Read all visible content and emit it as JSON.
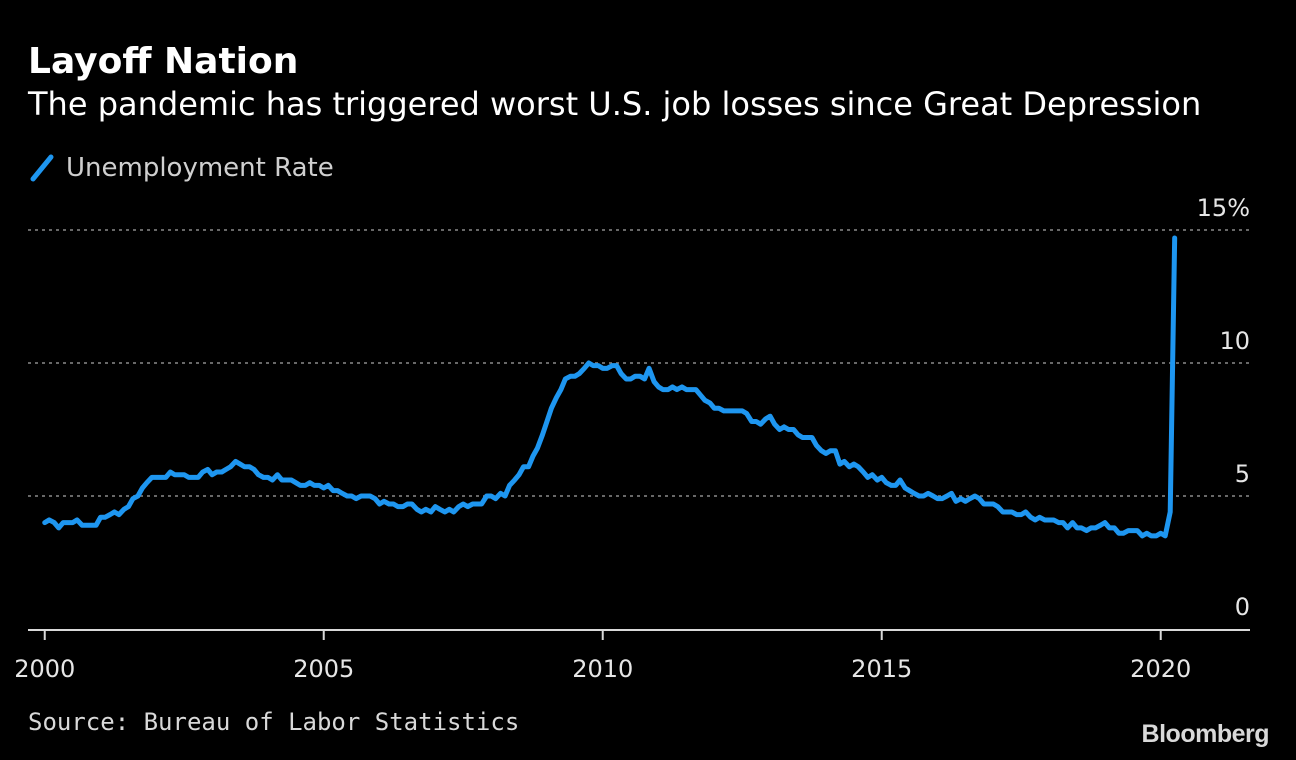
{
  "title": "Layoff Nation",
  "subtitle": "The pandemic has triggered worst U.S. job losses since Great Depression",
  "source": "Source: Bureau of Labor Statistics",
  "brand": "Bloomberg",
  "colors": {
    "background": "#000000",
    "series": "#1e96f0",
    "text": "#ffffff",
    "muted_text": "#cfcfcf",
    "gridline": "#8a8a8a",
    "axis": "#d9d9d9"
  },
  "chart_data": {
    "type": "line",
    "title": "Layoff Nation",
    "subtitle": "The pandemic has triggered worst U.S. job losses since Great Depression",
    "xlabel": "",
    "ylabel": "",
    "xlim": [
      1999.7,
      2021.6
    ],
    "ylim": [
      0,
      15
    ],
    "grid": true,
    "legend": "top-left",
    "x_ticks": [
      {
        "value": 2000,
        "label": "2000"
      },
      {
        "value": 2005,
        "label": "2005"
      },
      {
        "value": 2010,
        "label": "2010"
      },
      {
        "value": 2015,
        "label": "2015"
      },
      {
        "value": 2020,
        "label": "2020"
      }
    ],
    "y_ticks": [
      {
        "value": 0,
        "label": "0"
      },
      {
        "value": 5,
        "label": "5"
      },
      {
        "value": 10,
        "label": "10"
      },
      {
        "value": 15,
        "label": "15%"
      }
    ],
    "series": [
      {
        "name": "Unemployment Rate",
        "color": "#1e96f0",
        "x": [
          2000.0,
          2000.08,
          2000.17,
          2000.25,
          2000.33,
          2000.42,
          2000.5,
          2000.58,
          2000.67,
          2000.75,
          2000.83,
          2000.92,
          2001.0,
          2001.08,
          2001.17,
          2001.25,
          2001.33,
          2001.42,
          2001.5,
          2001.58,
          2001.67,
          2001.75,
          2001.83,
          2001.92,
          2002.0,
          2002.08,
          2002.17,
          2002.25,
          2002.33,
          2002.42,
          2002.5,
          2002.58,
          2002.67,
          2002.75,
          2002.83,
          2002.92,
          2003.0,
          2003.08,
          2003.17,
          2003.25,
          2003.33,
          2003.42,
          2003.5,
          2003.58,
          2003.67,
          2003.75,
          2003.83,
          2003.92,
          2004.0,
          2004.08,
          2004.17,
          2004.25,
          2004.33,
          2004.42,
          2004.5,
          2004.58,
          2004.67,
          2004.75,
          2004.83,
          2004.92,
          2005.0,
          2005.08,
          2005.17,
          2005.25,
          2005.33,
          2005.42,
          2005.5,
          2005.58,
          2005.67,
          2005.75,
          2005.83,
          2005.92,
          2006.0,
          2006.08,
          2006.17,
          2006.25,
          2006.33,
          2006.42,
          2006.5,
          2006.58,
          2006.67,
          2006.75,
          2006.83,
          2006.92,
          2007.0,
          2007.08,
          2007.17,
          2007.25,
          2007.33,
          2007.42,
          2007.5,
          2007.58,
          2007.67,
          2007.75,
          2007.83,
          2007.92,
          2008.0,
          2008.08,
          2008.17,
          2008.25,
          2008.33,
          2008.42,
          2008.5,
          2008.58,
          2008.67,
          2008.75,
          2008.83,
          2008.92,
          2009.0,
          2009.08,
          2009.17,
          2009.25,
          2009.33,
          2009.42,
          2009.5,
          2009.58,
          2009.67,
          2009.75,
          2009.83,
          2009.92,
          2010.0,
          2010.08,
          2010.17,
          2010.25,
          2010.33,
          2010.42,
          2010.5,
          2010.58,
          2010.67,
          2010.75,
          2010.83,
          2010.92,
          2011.0,
          2011.08,
          2011.17,
          2011.25,
          2011.33,
          2011.42,
          2011.5,
          2011.58,
          2011.67,
          2011.75,
          2011.83,
          2011.92,
          2012.0,
          2012.08,
          2012.17,
          2012.25,
          2012.33,
          2012.42,
          2012.5,
          2012.58,
          2012.67,
          2012.75,
          2012.83,
          2012.92,
          2013.0,
          2013.08,
          2013.17,
          2013.25,
          2013.33,
          2013.42,
          2013.5,
          2013.58,
          2013.67,
          2013.75,
          2013.83,
          2013.92,
          2014.0,
          2014.08,
          2014.17,
          2014.25,
          2014.33,
          2014.42,
          2014.5,
          2014.58,
          2014.67,
          2014.75,
          2014.83,
          2014.92,
          2015.0,
          2015.08,
          2015.17,
          2015.25,
          2015.33,
          2015.42,
          2015.5,
          2015.58,
          2015.67,
          2015.75,
          2015.83,
          2015.92,
          2016.0,
          2016.08,
          2016.17,
          2016.25,
          2016.33,
          2016.42,
          2016.5,
          2016.58,
          2016.67,
          2016.75,
          2016.83,
          2016.92,
          2017.0,
          2017.08,
          2017.17,
          2017.25,
          2017.33,
          2017.42,
          2017.5,
          2017.58,
          2017.67,
          2017.75,
          2017.83,
          2017.92,
          2018.0,
          2018.08,
          2018.17,
          2018.25,
          2018.33,
          2018.42,
          2018.5,
          2018.58,
          2018.67,
          2018.75,
          2018.83,
          2018.92,
          2019.0,
          2019.08,
          2019.17,
          2019.25,
          2019.33,
          2019.42,
          2019.5,
          2019.58,
          2019.67,
          2019.75,
          2019.83,
          2019.92,
          2020.0,
          2020.08,
          2020.17,
          2020.25
        ],
        "y": [
          4.0,
          4.1,
          4.0,
          3.8,
          4.0,
          4.0,
          4.0,
          4.1,
          3.9,
          3.9,
          3.9,
          3.9,
          4.2,
          4.2,
          4.3,
          4.4,
          4.3,
          4.5,
          4.6,
          4.9,
          5.0,
          5.3,
          5.5,
          5.7,
          5.7,
          5.7,
          5.7,
          5.9,
          5.8,
          5.8,
          5.8,
          5.7,
          5.7,
          5.7,
          5.9,
          6.0,
          5.8,
          5.9,
          5.9,
          6.0,
          6.1,
          6.3,
          6.2,
          6.1,
          6.1,
          6.0,
          5.8,
          5.7,
          5.7,
          5.6,
          5.8,
          5.6,
          5.6,
          5.6,
          5.5,
          5.4,
          5.4,
          5.5,
          5.4,
          5.4,
          5.3,
          5.4,
          5.2,
          5.2,
          5.1,
          5.0,
          5.0,
          4.9,
          5.0,
          5.0,
          5.0,
          4.9,
          4.7,
          4.8,
          4.7,
          4.7,
          4.6,
          4.6,
          4.7,
          4.7,
          4.5,
          4.4,
          4.5,
          4.4,
          4.6,
          4.5,
          4.4,
          4.5,
          4.4,
          4.6,
          4.7,
          4.6,
          4.7,
          4.7,
          4.7,
          5.0,
          5.0,
          4.9,
          5.1,
          5.0,
          5.4,
          5.6,
          5.8,
          6.1,
          6.1,
          6.5,
          6.8,
          7.3,
          7.8,
          8.3,
          8.7,
          9.0,
          9.4,
          9.5,
          9.5,
          9.6,
          9.8,
          10.0,
          9.9,
          9.9,
          9.8,
          9.8,
          9.9,
          9.9,
          9.6,
          9.4,
          9.4,
          9.5,
          9.5,
          9.4,
          9.8,
          9.3,
          9.1,
          9.0,
          9.0,
          9.1,
          9.0,
          9.1,
          9.0,
          9.0,
          9.0,
          8.8,
          8.6,
          8.5,
          8.3,
          8.3,
          8.2,
          8.2,
          8.2,
          8.2,
          8.2,
          8.1,
          7.8,
          7.8,
          7.7,
          7.9,
          8.0,
          7.7,
          7.5,
          7.6,
          7.5,
          7.5,
          7.3,
          7.2,
          7.2,
          7.2,
          6.9,
          6.7,
          6.6,
          6.7,
          6.7,
          6.2,
          6.3,
          6.1,
          6.2,
          6.1,
          5.9,
          5.7,
          5.8,
          5.6,
          5.7,
          5.5,
          5.4,
          5.4,
          5.6,
          5.3,
          5.2,
          5.1,
          5.0,
          5.0,
          5.1,
          5.0,
          4.9,
          4.9,
          5.0,
          5.1,
          4.8,
          4.9,
          4.8,
          4.9,
          5.0,
          4.9,
          4.7,
          4.7,
          4.7,
          4.6,
          4.4,
          4.4,
          4.4,
          4.3,
          4.3,
          4.4,
          4.2,
          4.1,
          4.2,
          4.1,
          4.1,
          4.1,
          4.0,
          4.0,
          3.8,
          4.0,
          3.8,
          3.8,
          3.7,
          3.8,
          3.8,
          3.9,
          4.0,
          3.8,
          3.8,
          3.6,
          3.6,
          3.7,
          3.7,
          3.7,
          3.5,
          3.6,
          3.5,
          3.5,
          3.6,
          3.5,
          4.4,
          14.7
        ]
      }
    ]
  }
}
